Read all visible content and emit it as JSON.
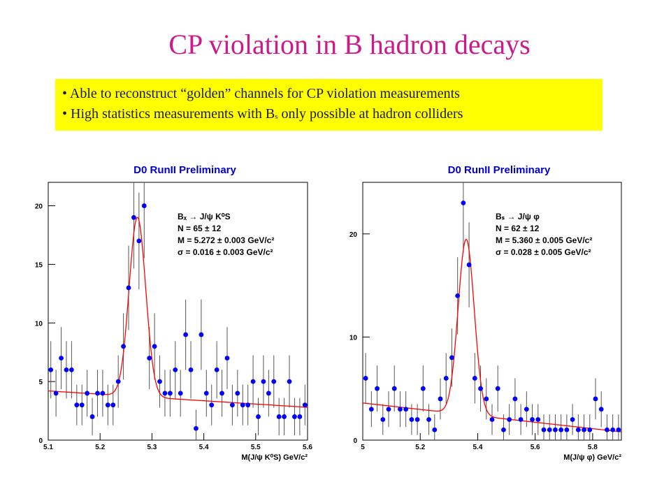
{
  "slide": {
    "title": "CP violation in B hadron decays",
    "bullets": [
      {
        "marker": "•",
        "text": "Able to reconstruct “golden” channels for CP violation measurements"
      },
      {
        "marker": "•",
        "text_before": "High statistics measurements with B",
        "sub": "s",
        "text_after": "only possible at hadron colliders"
      }
    ]
  },
  "colors": {
    "title": "#cc1a8a",
    "box": "#ffff00",
    "points": "#0000ff",
    "fit": "#ff0000",
    "header": "#0000cc"
  },
  "chart_data": [
    {
      "type": "scatter",
      "title": "D0 RunII  Preliminary",
      "xlabel": "M(J/ψ K⁰S) GeV/c²",
      "xlim": [
        5.1,
        5.6
      ],
      "ylim": [
        0,
        22
      ],
      "xticks": [
        "5.1",
        "5.2",
        "5.3",
        "5.4",
        "5.5",
        "5.6"
      ],
      "yticks": [
        "0",
        "5",
        "10",
        "15",
        "20"
      ],
      "legend_placement": "top-right",
      "annotation": [
        "Bₓ → J/ψ K⁰S",
        "N = 65 ± 12",
        "M = 5.272 ± 0.003 GeV/c²",
        "σ = 0.016 ± 0.003 GeV/c²"
      ],
      "x": [
        5.105,
        5.115,
        5.125,
        5.135,
        5.145,
        5.155,
        5.165,
        5.175,
        5.185,
        5.195,
        5.205,
        5.215,
        5.225,
        5.235,
        5.245,
        5.255,
        5.265,
        5.275,
        5.285,
        5.295,
        5.305,
        5.315,
        5.325,
        5.335,
        5.345,
        5.355,
        5.365,
        5.375,
        5.385,
        5.395,
        5.405,
        5.415,
        5.425,
        5.435,
        5.445,
        5.455,
        5.465,
        5.475,
        5.485,
        5.495,
        5.505,
        5.515,
        5.525,
        5.535,
        5.545,
        5.555,
        5.565,
        5.575,
        5.585,
        5.595
      ],
      "y": [
        6,
        4,
        7,
        6,
        6,
        3,
        3,
        4,
        2,
        4,
        4,
        3,
        3,
        5,
        8,
        13,
        19,
        17,
        20,
        7,
        8,
        5,
        4,
        4,
        6,
        4,
        9,
        6,
        1,
        9,
        4,
        3,
        6,
        4,
        7,
        3,
        4,
        3,
        3,
        5,
        2,
        5,
        4,
        5,
        2,
        2,
        5,
        2,
        2,
        3
      ],
      "fit": {
        "mean": 5.272,
        "sigma": 0.016,
        "amplitude": 15.3,
        "bg_at_xmin": 4.2,
        "bg_at_xmax": 2.8
      }
    },
    {
      "type": "scatter",
      "title": "D0 RunII  Preliminary",
      "xlabel": "M(J/ψ φ) GeV/c²",
      "xlim": [
        5.0,
        5.9
      ],
      "ylim": [
        0,
        25
      ],
      "xticks": [
        "5",
        "5.2",
        "5.4",
        "5.6",
        "5.8"
      ],
      "yticks": [
        "0",
        "10",
        "20"
      ],
      "legend_placement": "top-right",
      "annotation": [
        "Bₛ → J/ψ φ",
        "N = 62 ± 12",
        "M = 5.360 ± 0.005 GeV/c²",
        "σ = 0.028 ± 0.005 GeV/c²"
      ],
      "x": [
        5.01,
        5.03,
        5.05,
        5.07,
        5.09,
        5.11,
        5.13,
        5.15,
        5.17,
        5.19,
        5.21,
        5.23,
        5.25,
        5.27,
        5.29,
        5.31,
        5.33,
        5.35,
        5.37,
        5.39,
        5.41,
        5.43,
        5.45,
        5.47,
        5.49,
        5.51,
        5.53,
        5.55,
        5.57,
        5.59,
        5.61,
        5.63,
        5.65,
        5.67,
        5.69,
        5.71,
        5.73,
        5.75,
        5.77,
        5.79,
        5.81,
        5.83,
        5.85,
        5.87,
        5.89
      ],
      "y": [
        6,
        3,
        5,
        2,
        3,
        5,
        3,
        3,
        2,
        2,
        5,
        2,
        1,
        4,
        6,
        8,
        14,
        23,
        17,
        6,
        5,
        4,
        2,
        5,
        1,
        2,
        4,
        2,
        3,
        2,
        2,
        1,
        1,
        1,
        1,
        1,
        2,
        1,
        1,
        1,
        4,
        3,
        1,
        1,
        1
      ],
      "fit": {
        "mean": 5.36,
        "sigma": 0.028,
        "amplitude": 17.0,
        "bg_at_xmin": 3.6,
        "bg_at_xmax": 0.8
      }
    }
  ]
}
